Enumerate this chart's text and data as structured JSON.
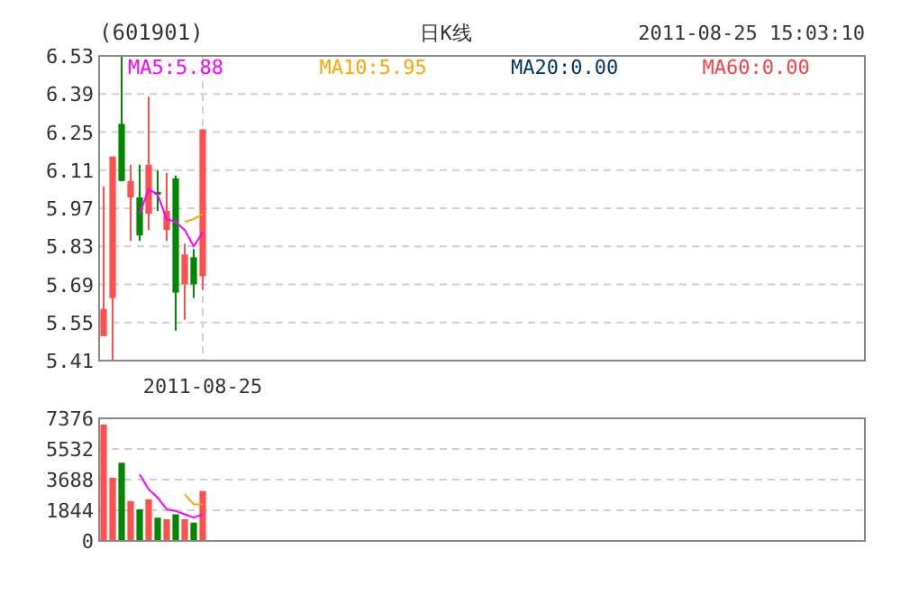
{
  "chart_data": [
    {
      "type": "candlestick",
      "title": "(601901)",
      "annotations": [
        "日K线",
        "2011-08-25 15:03:10"
      ],
      "categories": [
        null,
        null,
        null,
        null,
        null,
        null,
        null,
        null,
        null,
        null,
        null,
        "2011-08-25"
      ],
      "ohlc": [
        [
          5.5,
          6.05,
          5.5,
          5.6
        ],
        [
          5.64,
          6.16,
          5.41,
          6.16
        ],
        [
          6.28,
          6.53,
          6.07,
          6.07
        ],
        [
          6.01,
          6.13,
          5.85,
          6.07
        ],
        [
          6.01,
          6.13,
          5.85,
          5.87
        ],
        [
          5.95,
          6.38,
          5.89,
          6.13
        ],
        [
          6.03,
          6.11,
          5.96,
          6.02
        ],
        [
          5.89,
          6.1,
          5.85,
          5.96
        ],
        [
          6.08,
          6.09,
          5.52,
          5.66
        ],
        [
          5.69,
          5.84,
          5.56,
          5.8
        ],
        [
          5.79,
          5.82,
          5.64,
          5.69
        ],
        [
          5.72,
          6.26,
          5.67,
          6.26
        ]
      ],
      "colors": [
        "#ff5050",
        "#ff5050",
        "#008800",
        "#ff5050",
        "#008800",
        "#ff5050",
        "#008800",
        "#ff5050",
        "#008800",
        "#ff5050",
        "#008800",
        "#ff5050"
      ],
      "series": [
        {
          "name": "MA5:5.88",
          "type": "line",
          "color": "#ff00ff",
          "values": [
            null,
            null,
            null,
            null,
            5.95,
            6.04,
            6.02,
            5.93,
            5.92,
            5.89,
            5.83,
            5.88
          ]
        },
        {
          "name": "MA10:5.95",
          "type": "line",
          "color": "#ffa500",
          "values": [
            null,
            null,
            null,
            null,
            null,
            null,
            null,
            null,
            null,
            5.92,
            5.93,
            5.95
          ]
        },
        {
          "name": "MA20:0.00",
          "type": "line",
          "color": "#003366",
          "values": [
            null,
            null,
            null,
            null,
            null,
            null,
            null,
            null,
            null,
            null,
            null,
            null
          ]
        },
        {
          "name": "MA60:0.00",
          "type": "line",
          "color": "#ff4040",
          "values": [
            null,
            null,
            null,
            null,
            null,
            null,
            null,
            null,
            null,
            null,
            null,
            null
          ]
        }
      ],
      "ylim": [
        5.41,
        6.53
      ],
      "yticks": [
        5.41,
        5.55,
        5.69,
        5.83,
        5.97,
        6.11,
        6.25,
        6.39,
        6.53
      ],
      "grid": true,
      "legend": "top"
    },
    {
      "type": "bar",
      "categories": [
        null,
        null,
        null,
        null,
        null,
        null,
        null,
        null,
        null,
        null,
        null,
        null
      ],
      "values": [
        7000,
        3800,
        4700,
        2400,
        1900,
        2500,
        1400,
        1300,
        1600,
        1300,
        1100,
        3000
      ],
      "colors": [
        "#ff5050",
        "#ff5050",
        "#008800",
        "#ff5050",
        "#008800",
        "#ff5050",
        "#008800",
        "#ff5050",
        "#008800",
        "#ff5050",
        "#008800",
        "#ff5050"
      ],
      "series": [
        {
          "type": "line",
          "color": "#ff00ff",
          "values": [
            null,
            null,
            null,
            null,
            4000,
            3100,
            2600,
            1900,
            1800,
            1600,
            1400,
            1600
          ]
        },
        {
          "type": "line",
          "color": "#ffa500",
          "values": [
            null,
            null,
            null,
            null,
            null,
            null,
            null,
            null,
            null,
            2800,
            2200,
            2200
          ]
        }
      ],
      "ylim": [
        0,
        7376
      ],
      "yticks": [
        0,
        1844,
        3688,
        5532,
        7376
      ],
      "grid": true
    }
  ]
}
